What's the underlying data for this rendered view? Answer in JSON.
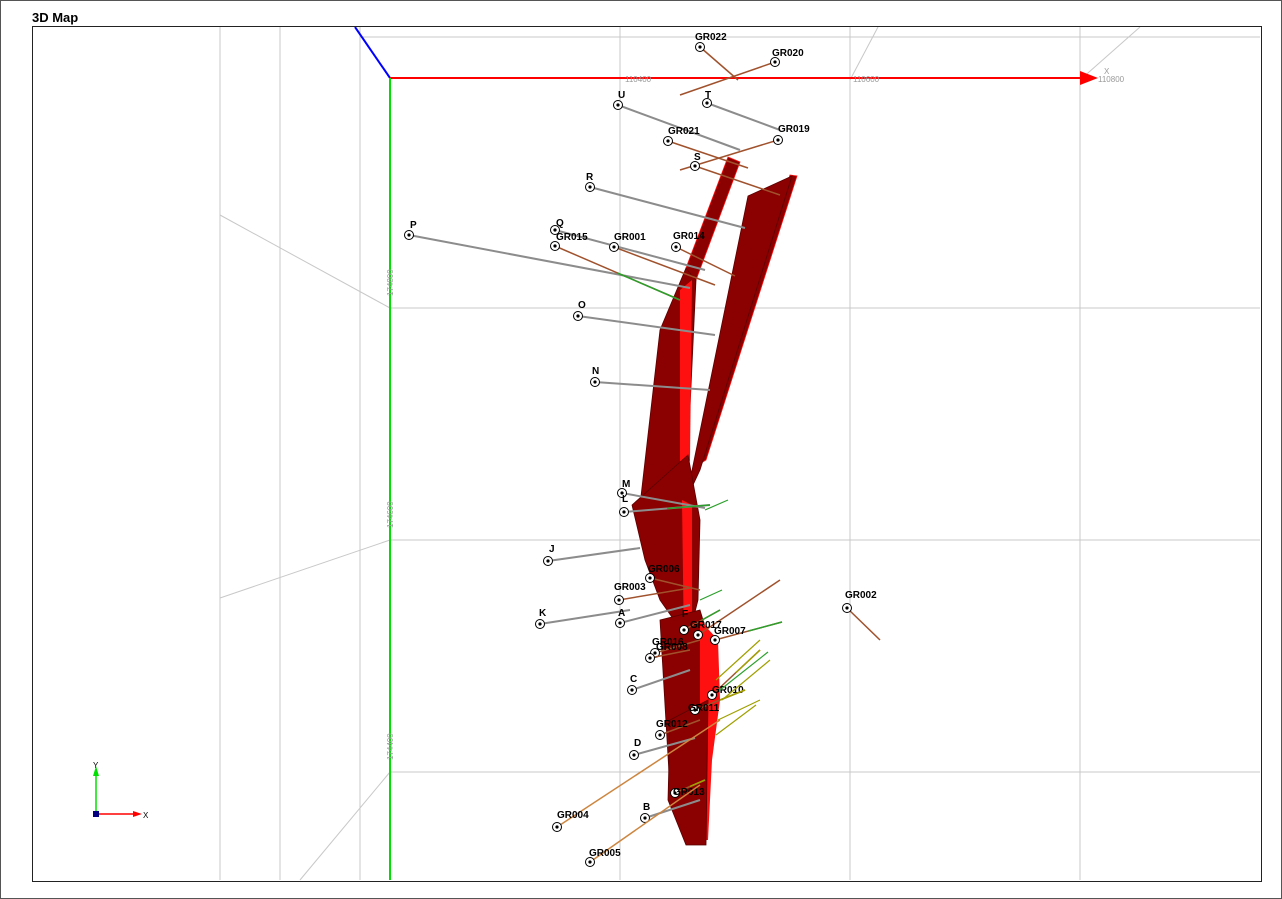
{
  "window": {
    "title": "3D Map"
  },
  "axes": {
    "x_label": "X",
    "y_label": "Y",
    "x_color": "#ff0000",
    "y_color": "#00e000",
    "z_color": "#0000ff",
    "x_ticks": [
      "110400",
      "110600",
      "110800"
    ],
    "y_ticks": [
      "174800",
      "174600",
      "174400"
    ]
  },
  "triad": {
    "x_label": "X",
    "y_label": "Y"
  },
  "colors": {
    "orebody": "#8b0000",
    "orebody_highlight": "#ff1010",
    "drillhole_trace": "#8c8c8c",
    "collar": "#000000",
    "grid": "#c8c8c8"
  },
  "drillholes": [
    {
      "name": "GR022"
    },
    {
      "name": "GR020"
    },
    {
      "name": "U"
    },
    {
      "name": "T"
    },
    {
      "name": "GR021"
    },
    {
      "name": "GR019"
    },
    {
      "name": "S"
    },
    {
      "name": "R"
    },
    {
      "name": "P"
    },
    {
      "name": "Q"
    },
    {
      "name": "GR015"
    },
    {
      "name": "GR001"
    },
    {
      "name": "GR014"
    },
    {
      "name": "O"
    },
    {
      "name": "N"
    },
    {
      "name": "M"
    },
    {
      "name": "L"
    },
    {
      "name": "J"
    },
    {
      "name": "GR006"
    },
    {
      "name": "GR003"
    },
    {
      "name": "K"
    },
    {
      "name": "A"
    },
    {
      "name": "F"
    },
    {
      "name": "GR017"
    },
    {
      "name": "GR007"
    },
    {
      "name": "GR002"
    },
    {
      "name": "GR016"
    },
    {
      "name": "GR008"
    },
    {
      "name": "C"
    },
    {
      "name": "GR010"
    },
    {
      "name": "GR011"
    },
    {
      "name": "GR012"
    },
    {
      "name": "D"
    },
    {
      "name": "GR013"
    },
    {
      "name": "B"
    },
    {
      "name": "GR004"
    },
    {
      "name": "GR005"
    }
  ]
}
